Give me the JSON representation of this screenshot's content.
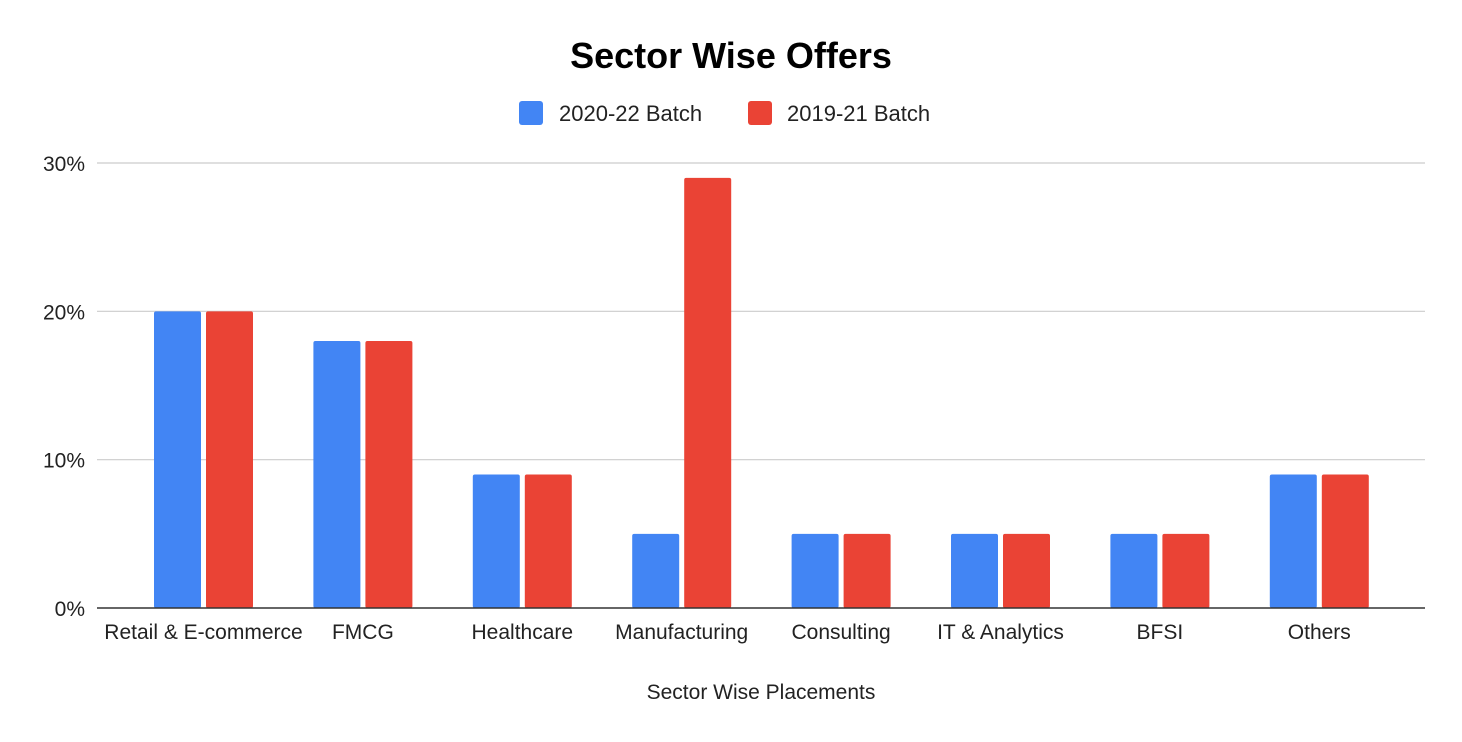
{
  "chart_data": {
    "type": "bar",
    "title": "Sector Wise Offers",
    "xlabel": "Sector Wise Placements",
    "ylabel": "",
    "ylim": [
      0,
      30
    ],
    "yticks": [
      0,
      10,
      20,
      30
    ],
    "ytick_labels": [
      "0%",
      "10%",
      "20%",
      "30%"
    ],
    "value_unit": "%",
    "grid": true,
    "legend_position": "top-center",
    "categories": [
      "Retail & E-commerce",
      "FMCG",
      "Healthcare",
      "Manufacturing",
      "Consulting",
      "IT & Analytics",
      "BFSI",
      "Others"
    ],
    "series": [
      {
        "name": "2020-22 Batch",
        "color": "#4285f4",
        "values": [
          20,
          18,
          9,
          5,
          5,
          5,
          5,
          9
        ]
      },
      {
        "name": "2019-21 Batch",
        "color": "#ea4335",
        "values": [
          20,
          18,
          9,
          29,
          5,
          5,
          5,
          9
        ]
      }
    ],
    "colors": {
      "grid": "#cccccc",
      "axis": "#333333",
      "text": "#222222"
    }
  }
}
